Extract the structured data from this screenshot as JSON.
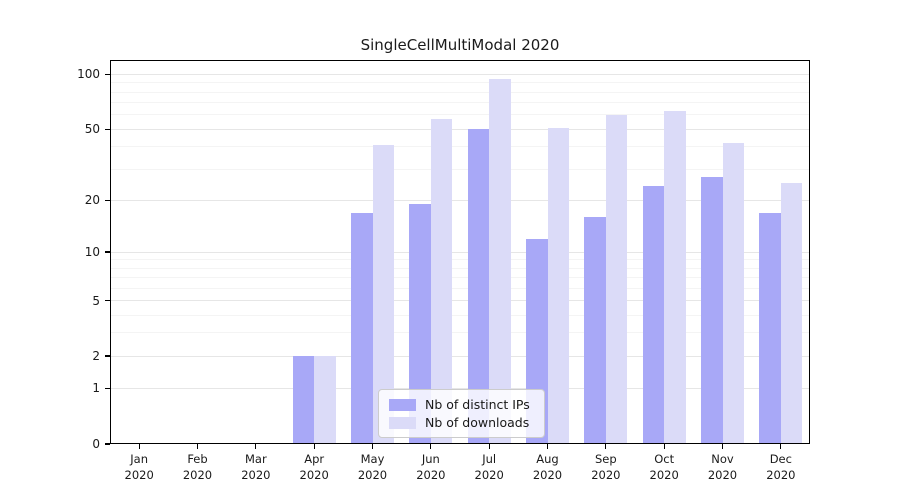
{
  "chart_data": {
    "type": "bar",
    "title": "SingleCellMultiModal 2020",
    "categories": [
      "Jan",
      "Feb",
      "Mar",
      "Apr",
      "May",
      "Jun",
      "Jul",
      "Aug",
      "Sep",
      "Oct",
      "Nov",
      "Dec"
    ],
    "category_year": "2020",
    "series": [
      {
        "name": "Nb of distinct IPs",
        "color": "#a8a8f7",
        "values": [
          0,
          0,
          0,
          2,
          17,
          19,
          50,
          12,
          16,
          24,
          27,
          17
        ]
      },
      {
        "name": "Nb of downloads",
        "color": "#dbdbf8",
        "values": [
          0,
          0,
          0,
          2,
          41,
          57,
          95,
          51,
          60,
          63,
          42,
          25
        ]
      }
    ],
    "xlabel": "",
    "ylabel": "",
    "y_scale": "log1p",
    "ylim": [
      0,
      120
    ],
    "y_ticks": [
      0,
      1,
      2,
      5,
      10,
      20,
      50,
      100
    ],
    "y_minor_gridlines": [
      3,
      4,
      6,
      7,
      8,
      9,
      30,
      40,
      60,
      70,
      80,
      90
    ],
    "grid": true,
    "legend_position": "lower center",
    "colors": {
      "spine": "#000000",
      "grid_major": "#e6e6e6",
      "grid_minor": "#f4f4f4",
      "text": "#1a1a1a",
      "legend_border": "#cccccc"
    }
  }
}
